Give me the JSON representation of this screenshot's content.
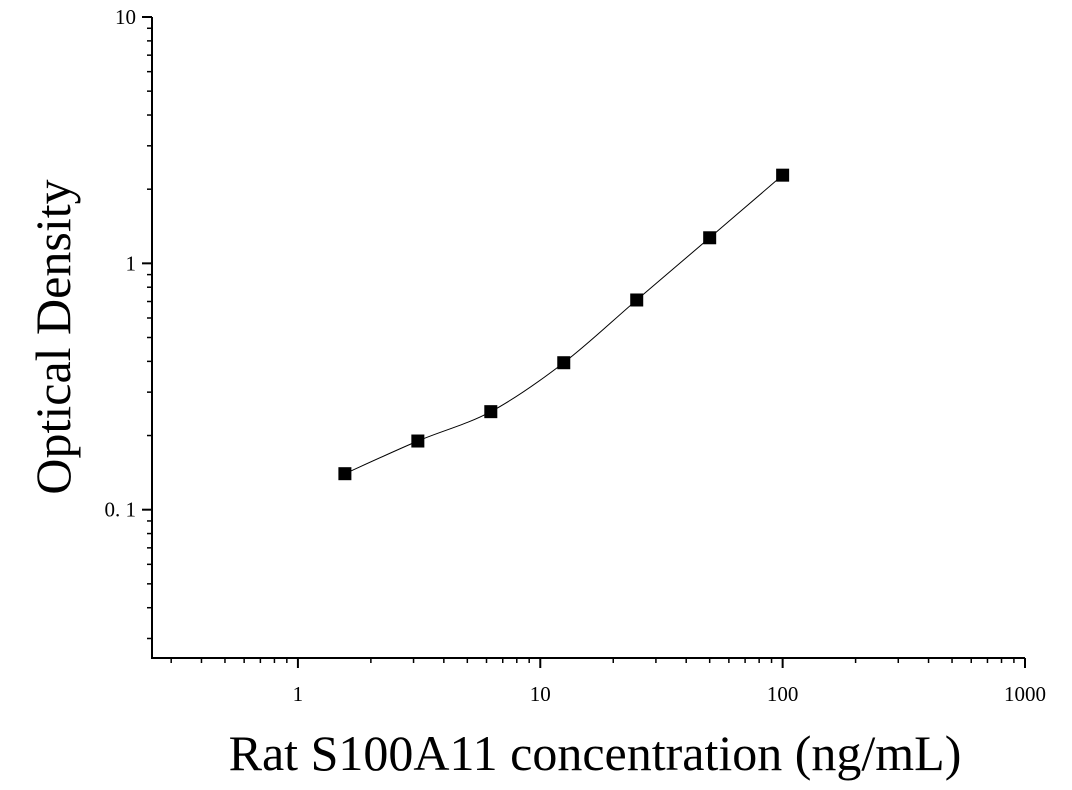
{
  "chart_data": {
    "type": "scatter",
    "title": "",
    "xlabel": "Rat S100A11 concentration (ng/mL)",
    "ylabel": "Optical Density",
    "x_scale": "log",
    "y_scale": "log",
    "xlim": [
      0.25,
      1000
    ],
    "ylim": [
      0.025,
      10
    ],
    "grid": false,
    "x_ticks": [
      {
        "value": 1,
        "label": "1"
      },
      {
        "value": 10,
        "label": "10"
      },
      {
        "value": 100,
        "label": "100"
      },
      {
        "value": 1000,
        "label": "1000"
      }
    ],
    "y_ticks": [
      {
        "value": 0.1,
        "label": "0. 1"
      },
      {
        "value": 1,
        "label": "1"
      },
      {
        "value": 10,
        "label": "10"
      }
    ],
    "series": [
      {
        "marker": "square",
        "color": "#000000",
        "x": [
          1.5625,
          3.125,
          6.25,
          12.5,
          25,
          50,
          100
        ],
        "y": [
          0.14,
          0.19,
          0.25,
          0.395,
          0.71,
          1.27,
          2.28
        ]
      }
    ],
    "fit_curve": {
      "type": "smooth",
      "color": "#000000",
      "x_range": [
        1.5625,
        100
      ]
    }
  }
}
